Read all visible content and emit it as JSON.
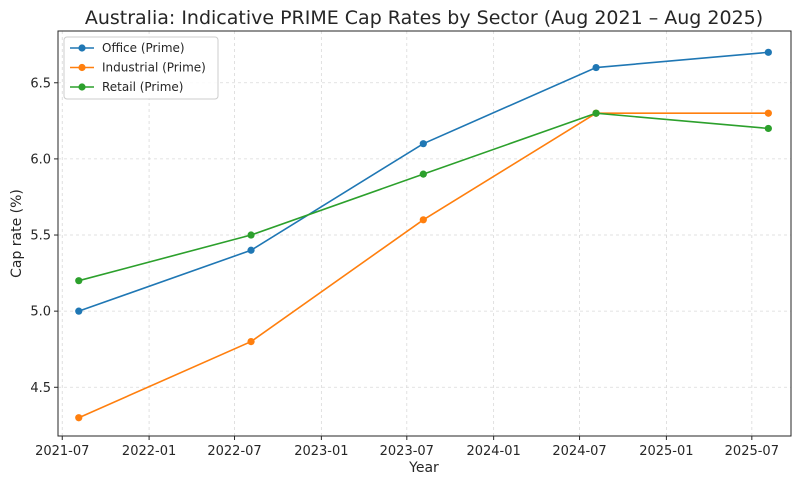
{
  "chart_data": {
    "type": "line",
    "title": "Australia: Indicative PRIME Cap Rates by Sector (Aug 2021 – Aug 2025)",
    "xlabel": "Year",
    "ylabel": "Cap rate (%)",
    "x": [
      "2021-08",
      "2022-08",
      "2023-08",
      "2024-08",
      "2025-08"
    ],
    "xticks": [
      "2021-07",
      "2022-01",
      "2022-07",
      "2023-01",
      "2023-07",
      "2024-01",
      "2024-07",
      "2025-01",
      "2025-07"
    ],
    "yticks": [
      4.5,
      5.0,
      5.5,
      6.0,
      6.5
    ],
    "ylim": [
      4.18,
      6.84
    ],
    "xlim": [
      "2021-06-22",
      "2025-09-22"
    ],
    "grid": true,
    "legend_position": "top-left",
    "series": [
      {
        "name": "Office (Prime)",
        "color": "#1f77b4",
        "values": [
          5.0,
          5.4,
          6.1,
          6.6,
          6.7
        ]
      },
      {
        "name": "Industrial (Prime)",
        "color": "#ff7f0e",
        "values": [
          4.3,
          4.8,
          5.6,
          6.3,
          6.3
        ]
      },
      {
        "name": "Retail (Prime)",
        "color": "#2ca02c",
        "values": [
          5.2,
          5.5,
          5.9,
          6.3,
          6.2
        ]
      }
    ]
  }
}
